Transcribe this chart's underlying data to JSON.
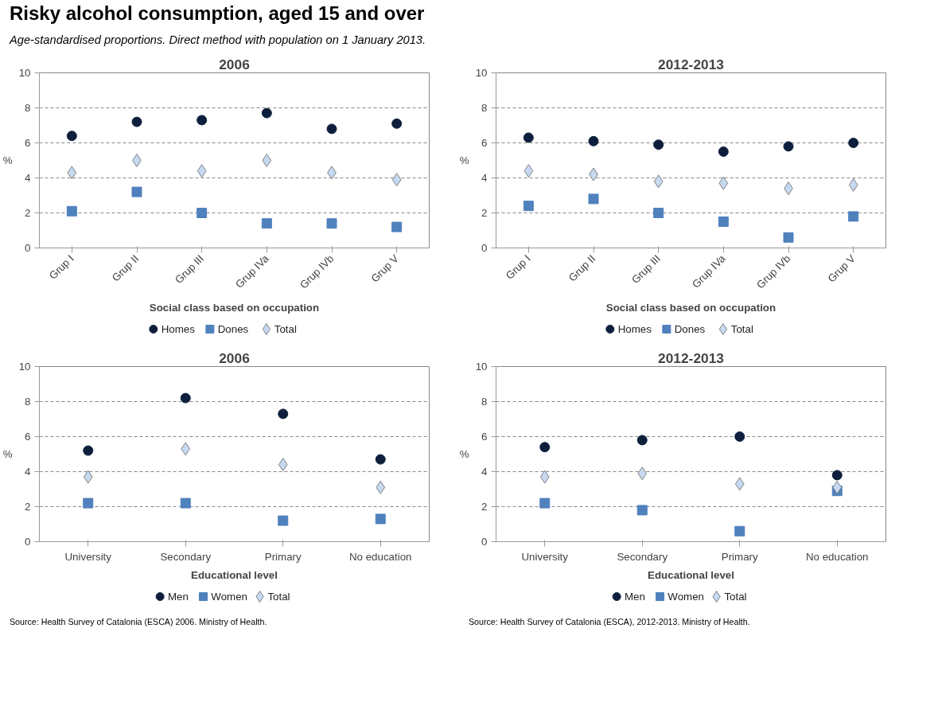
{
  "chart_data": [
    {
      "type": "scatter",
      "title": "2006",
      "xlabel": "Social class based on occupation",
      "ylabel": "%",
      "annotations": [
        "Risky alcohol consumption, aged 15 and over",
        "Age-standardised proportions. Direct method with population on 1 January 2013."
      ],
      "categories": [
        "Grup I",
        "Grup II",
        "Grup III",
        "Grup IVa",
        "Grup IVb",
        "Grup V"
      ],
      "ylim": [
        0,
        10
      ],
      "yticks": [
        0,
        2,
        4,
        6,
        8,
        10
      ],
      "grid": "y",
      "legend": "bottom",
      "series": [
        {
          "name": "Homes",
          "color": "#0d1f3c",
          "marker": "circle",
          "values": [
            6.4,
            7.2,
            7.3,
            7.7,
            6.8,
            7.1
          ]
        },
        {
          "name": "Dones",
          "color": "#4f81bd",
          "marker": "square",
          "values": [
            2.1,
            3.2,
            2.0,
            1.4,
            1.4,
            1.2
          ]
        },
        {
          "name": "Total",
          "color": "#c6d9f1",
          "marker": "diamond",
          "values": [
            4.3,
            5.0,
            4.4,
            5.0,
            4.3,
            3.9
          ]
        }
      ]
    },
    {
      "type": "scatter",
      "title": "2012-2013",
      "xlabel": "Social class based on occupation",
      "ylabel": "%",
      "categories": [
        "Grup I",
        "Grup II",
        "Grup III",
        "Grup IVa",
        "Grup IVb",
        "Grup V"
      ],
      "ylim": [
        0,
        10
      ],
      "yticks": [
        0,
        2,
        4,
        6,
        8,
        10
      ],
      "grid": "y",
      "legend": "bottom",
      "series": [
        {
          "name": "Homes",
          "color": "#0d1f3c",
          "marker": "circle",
          "values": [
            6.3,
            6.1,
            5.9,
            5.5,
            5.8,
            6.0
          ]
        },
        {
          "name": "Dones",
          "color": "#4f81bd",
          "marker": "square",
          "values": [
            2.4,
            2.8,
            2.0,
            1.5,
            0.6,
            1.8
          ]
        },
        {
          "name": "Total",
          "color": "#c6d9f1",
          "marker": "diamond",
          "values": [
            4.4,
            4.2,
            3.8,
            3.7,
            3.4,
            3.6
          ]
        }
      ]
    },
    {
      "type": "scatter",
      "title": "2006",
      "xlabel": "Educational level",
      "ylabel": "%",
      "annotations": [
        "Source: Health Survey of Catalonia (ESCA) 2006. Ministry of Health."
      ],
      "categories": [
        "University",
        "Secondary",
        "Primary",
        "No education"
      ],
      "ylim": [
        0,
        10
      ],
      "yticks": [
        0,
        2,
        4,
        6,
        8,
        10
      ],
      "grid": "y",
      "legend": "bottom",
      "series": [
        {
          "name": "Men",
          "color": "#0d1f3c",
          "marker": "circle",
          "values": [
            5.2,
            8.2,
            7.3,
            4.7
          ]
        },
        {
          "name": "Women",
          "color": "#4f81bd",
          "marker": "square",
          "values": [
            2.2,
            2.2,
            1.2,
            1.3
          ]
        },
        {
          "name": "Total",
          "color": "#c6d9f1",
          "marker": "diamond",
          "values": [
            3.7,
            5.3,
            4.4,
            3.1
          ]
        }
      ]
    },
    {
      "type": "scatter",
      "title": "2012-2013",
      "xlabel": "Educational level",
      "ylabel": "%",
      "annotations": [
        "Source: Health Survey of Catalonia (ESCA), 2012-2013. Ministry of Health."
      ],
      "categories": [
        "University",
        "Secondary",
        "Primary",
        "No education"
      ],
      "ylim": [
        0,
        10
      ],
      "yticks": [
        0,
        2,
        4,
        6,
        8,
        10
      ],
      "grid": "y",
      "legend": "bottom",
      "series": [
        {
          "name": "Men",
          "color": "#0d1f3c",
          "marker": "circle",
          "values": [
            5.4,
            5.8,
            6.0,
            3.8
          ]
        },
        {
          "name": "Women",
          "color": "#4f81bd",
          "marker": "square",
          "values": [
            2.2,
            1.8,
            0.6,
            2.9
          ]
        },
        {
          "name": "Total",
          "color": "#c6d9f1",
          "marker": "diamond",
          "values": [
            3.7,
            3.9,
            3.3,
            3.1
          ]
        }
      ]
    }
  ]
}
